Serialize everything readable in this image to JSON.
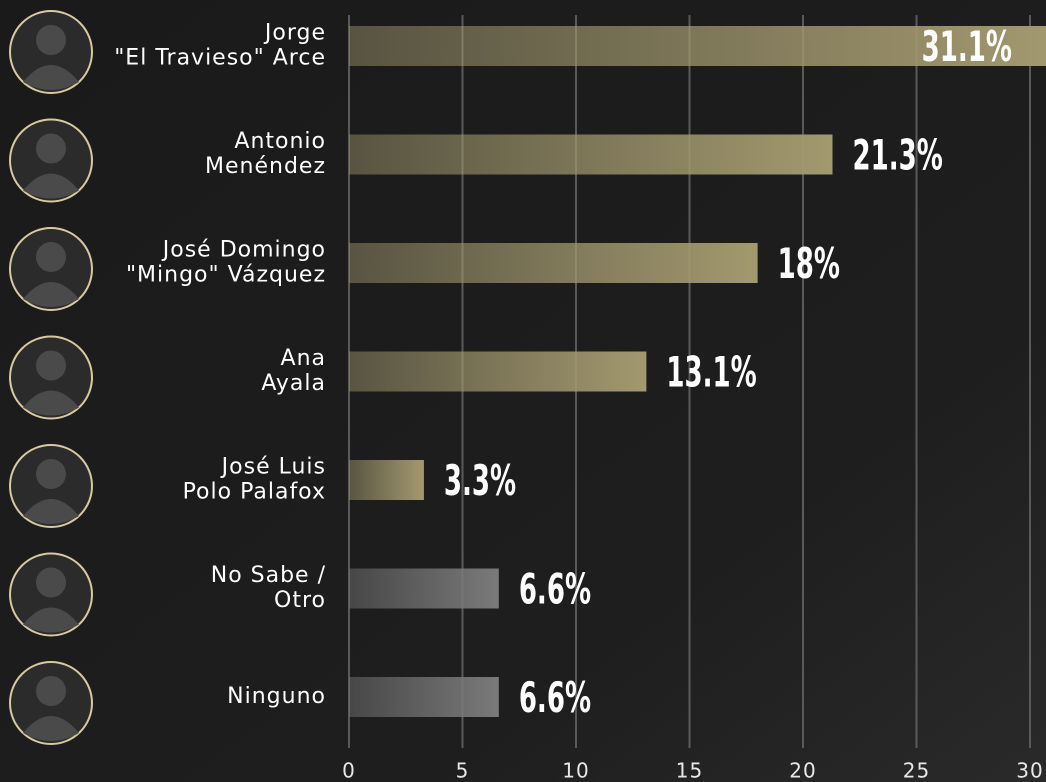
{
  "chart_data": {
    "type": "barh",
    "categories": [
      [
        "Jorge",
        "\"El Travieso\" Arce"
      ],
      [
        "Antonio",
        "Menéndez"
      ],
      [
        "José Domingo",
        "\"Mingo\" Vázquez"
      ],
      [
        "Ana",
        "Ayala"
      ],
      [
        "José Luis",
        "Polo Palafox"
      ],
      [
        "No Sabe /",
        "Otro"
      ],
      [
        "Ninguno"
      ]
    ],
    "values": [
      31.1,
      21.3,
      18,
      13.1,
      3.3,
      6.6,
      6.6
    ],
    "value_labels": [
      "31.1%",
      "21.3%",
      "18%",
      "13.1%",
      "3.3%",
      "6.6%",
      "6.6%"
    ],
    "colors": [
      "#a3996f",
      "#a3996f",
      "#a3996f",
      "#a3996f",
      "#a3996f",
      "#7a7a7a",
      "#7a7a7a"
    ],
    "xlim": [
      0,
      30
    ],
    "xticks": [
      0,
      5,
      10,
      15,
      20,
      25,
      30
    ],
    "grid": true
  }
}
